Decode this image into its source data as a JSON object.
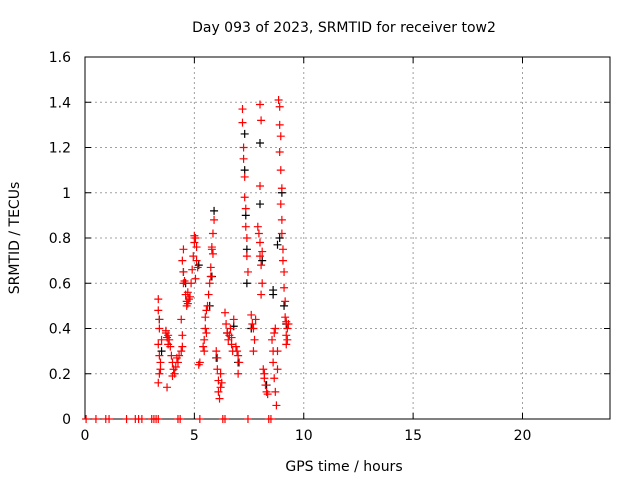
{
  "chart_data": {
    "type": "scatter",
    "title": "Day 093 of 2023, SRMTID for receiver tow2",
    "xlabel": "GPS time / hours",
    "ylabel": "SRMTID / TECUs",
    "xlim": [
      0,
      24
    ],
    "ylim": [
      0,
      1.6
    ],
    "xticks": [
      0,
      5,
      10,
      15,
      20
    ],
    "xtick_labels": [
      "0",
      "5",
      "10",
      "15",
      "20"
    ],
    "yticks": [
      0,
      0.2,
      0.4,
      0.6,
      0.8,
      1,
      1.2,
      1.4,
      1.6
    ],
    "ytick_labels": [
      "0",
      "0.2",
      "0.4",
      "0.6",
      "0.8",
      "1",
      "1.2",
      "1.4",
      "1.6"
    ],
    "grid": true,
    "marker": "plus",
    "series": [
      {
        "name": "series-black",
        "color": "#000000",
        "points": [
          [
            3.4,
            0.44
          ],
          [
            3.5,
            0.3
          ],
          [
            4.5,
            0.65
          ],
          [
            4.6,
            0.6
          ],
          [
            5.2,
            0.68
          ],
          [
            5.7,
            0.5
          ],
          [
            5.8,
            0.63
          ],
          [
            5.9,
            0.92
          ],
          [
            6.0,
            0.27
          ],
          [
            6.5,
            0.38
          ],
          [
            7.0,
            0.25
          ],
          [
            7.3,
            1.26
          ],
          [
            7.3,
            1.1
          ],
          [
            7.35,
            0.9
          ],
          [
            7.4,
            0.75
          ],
          [
            7.4,
            0.6
          ],
          [
            7.6,
            0.4
          ],
          [
            8.0,
            1.22
          ],
          [
            8.0,
            0.95
          ],
          [
            8.1,
            0.7
          ],
          [
            8.6,
            0.55
          ],
          [
            8.6,
            0.57
          ],
          [
            8.8,
            0.77
          ],
          [
            8.9,
            0.8
          ],
          [
            9.0,
            1.0
          ],
          [
            9.1,
            0.5
          ],
          [
            9.2,
            0.42
          ],
          [
            8.3,
            0.15
          ],
          [
            6.8,
            0.41
          ]
        ]
      },
      {
        "name": "series-red",
        "color": "#ff0000",
        "points": [
          [
            0.05,
            0
          ],
          [
            0.5,
            0
          ],
          [
            0.95,
            0
          ],
          [
            1.1,
            0
          ],
          [
            1.9,
            0
          ],
          [
            2.3,
            0
          ],
          [
            2.45,
            0
          ],
          [
            2.6,
            0
          ],
          [
            3.05,
            0
          ],
          [
            3.15,
            0
          ],
          [
            3.25,
            0
          ],
          [
            3.35,
            0
          ],
          [
            4.25,
            0
          ],
          [
            4.35,
            0
          ],
          [
            5.25,
            0
          ],
          [
            6.3,
            0
          ],
          [
            6.4,
            0
          ],
          [
            7.45,
            0
          ],
          [
            8.4,
            0
          ],
          [
            8.5,
            0
          ],
          [
            3.35,
            0.53
          ],
          [
            3.35,
            0.48
          ],
          [
            3.4,
            0.44
          ],
          [
            3.4,
            0.4
          ],
          [
            3.35,
            0.33
          ],
          [
            3.4,
            0.28
          ],
          [
            3.45,
            0.25
          ],
          [
            3.4,
            0.2
          ],
          [
            3.35,
            0.16
          ],
          [
            3.45,
            0.22
          ],
          [
            3.5,
            0.35
          ],
          [
            3.7,
            0.38
          ],
          [
            3.75,
            0.36
          ],
          [
            3.8,
            0.37
          ],
          [
            3.85,
            0.35
          ],
          [
            3.8,
            0.33
          ],
          [
            3.9,
            0.32
          ],
          [
            3.75,
            0.14
          ],
          [
            3.7,
            0.39
          ],
          [
            3.95,
            0.28
          ],
          [
            4.0,
            0.25
          ],
          [
            4.05,
            0.22
          ],
          [
            4.1,
            0.2
          ],
          [
            4.0,
            0.19
          ],
          [
            4.15,
            0.23
          ],
          [
            4.2,
            0.27
          ],
          [
            4.25,
            0.25
          ],
          [
            4.3,
            0.28
          ],
          [
            4.4,
            0.3
          ],
          [
            4.45,
            0.32
          ],
          [
            4.45,
            0.37
          ],
          [
            4.4,
            0.44
          ],
          [
            4.5,
            0.6
          ],
          [
            4.5,
            0.65
          ],
          [
            4.45,
            0.7
          ],
          [
            4.5,
            0.75
          ],
          [
            4.55,
            0.61
          ],
          [
            4.6,
            0.55
          ],
          [
            4.65,
            0.52
          ],
          [
            4.7,
            0.51
          ],
          [
            4.75,
            0.53
          ],
          [
            4.8,
            0.54
          ],
          [
            4.7,
            0.56
          ],
          [
            4.65,
            0.5
          ],
          [
            4.85,
            0.6
          ],
          [
            4.9,
            0.66
          ],
          [
            4.95,
            0.72
          ],
          [
            5.0,
            0.78
          ],
          [
            5.0,
            0.81
          ],
          [
            5.05,
            0.8
          ],
          [
            5.1,
            0.76
          ],
          [
            5.1,
            0.7
          ],
          [
            5.15,
            0.67
          ],
          [
            5.05,
            0.62
          ],
          [
            5.2,
            0.24
          ],
          [
            5.25,
            0.25
          ],
          [
            5.4,
            0.32
          ],
          [
            5.45,
            0.35
          ],
          [
            5.5,
            0.4
          ],
          [
            5.5,
            0.45
          ],
          [
            5.55,
            0.48
          ],
          [
            5.6,
            0.5
          ],
          [
            5.55,
            0.38
          ],
          [
            5.45,
            0.3
          ],
          [
            5.65,
            0.55
          ],
          [
            5.7,
            0.6
          ],
          [
            5.75,
            0.67
          ],
          [
            5.8,
            0.75
          ],
          [
            5.8,
            0.76
          ],
          [
            5.85,
            0.82
          ],
          [
            5.9,
            0.88
          ],
          [
            5.85,
            0.73
          ],
          [
            5.75,
            0.63
          ],
          [
            6.0,
            0.3
          ],
          [
            6.05,
            0.22
          ],
          [
            6.1,
            0.17
          ],
          [
            6.1,
            0.12
          ],
          [
            6.15,
            0.09
          ],
          [
            6.2,
            0.14
          ],
          [
            6.25,
            0.16
          ],
          [
            6.05,
            0.27
          ],
          [
            6.2,
            0.2
          ],
          [
            6.4,
            0.47
          ],
          [
            6.45,
            0.42
          ],
          [
            6.5,
            0.38
          ],
          [
            6.55,
            0.35
          ],
          [
            6.6,
            0.37
          ],
          [
            6.65,
            0.4
          ],
          [
            6.7,
            0.33
          ],
          [
            6.75,
            0.3
          ],
          [
            6.8,
            0.44
          ],
          [
            6.7,
            0.36
          ],
          [
            6.9,
            0.32
          ],
          [
            6.95,
            0.3
          ],
          [
            7.0,
            0.28
          ],
          [
            7.0,
            0.2
          ],
          [
            7.05,
            0.25
          ],
          [
            7.2,
            1.37
          ],
          [
            7.2,
            1.31
          ],
          [
            7.25,
            1.2
          ],
          [
            7.25,
            1.15
          ],
          [
            7.3,
            1.07
          ],
          [
            7.3,
            0.98
          ],
          [
            7.35,
            0.93
          ],
          [
            7.35,
            0.85
          ],
          [
            7.4,
            0.8
          ],
          [
            7.4,
            0.72
          ],
          [
            7.45,
            0.65
          ],
          [
            7.6,
            0.46
          ],
          [
            7.65,
            0.42
          ],
          [
            7.7,
            0.4
          ],
          [
            7.75,
            0.35
          ],
          [
            7.7,
            0.3
          ],
          [
            7.8,
            0.44
          ],
          [
            7.9,
            0.85
          ],
          [
            7.95,
            0.82
          ],
          [
            8.0,
            0.78
          ],
          [
            8.0,
            0.72
          ],
          [
            8.05,
            0.68
          ],
          [
            8.1,
            0.6
          ],
          [
            8.05,
            0.55
          ],
          [
            8.0,
            1.39
          ],
          [
            8.05,
            1.32
          ],
          [
            8.0,
            1.03
          ],
          [
            8.1,
            0.74
          ],
          [
            8.15,
            0.22
          ],
          [
            8.2,
            0.18
          ],
          [
            8.25,
            0.15
          ],
          [
            8.3,
            0.12
          ],
          [
            8.35,
            0.11
          ],
          [
            8.2,
            0.2
          ],
          [
            8.55,
            0.35
          ],
          [
            8.6,
            0.3
          ],
          [
            8.6,
            0.25
          ],
          [
            8.65,
            0.18
          ],
          [
            8.7,
            0.12
          ],
          [
            8.75,
            0.06
          ],
          [
            8.7,
            0.4
          ],
          [
            8.65,
            0.38
          ],
          [
            8.8,
            0.3
          ],
          [
            8.8,
            0.22
          ],
          [
            8.85,
            1.41
          ],
          [
            8.9,
            1.38
          ],
          [
            8.9,
            1.3
          ],
          [
            8.95,
            1.25
          ],
          [
            8.9,
            1.18
          ],
          [
            8.95,
            1.1
          ],
          [
            9.0,
            1.02
          ],
          [
            8.95,
            0.95
          ],
          [
            9.0,
            0.88
          ],
          [
            9.0,
            0.82
          ],
          [
            9.05,
            0.75
          ],
          [
            9.05,
            0.7
          ],
          [
            9.1,
            0.65
          ],
          [
            9.1,
            0.58
          ],
          [
            9.15,
            0.52
          ],
          [
            9.15,
            0.45
          ],
          [
            9.2,
            0.43
          ],
          [
            9.25,
            0.4
          ],
          [
            9.2,
            0.37
          ],
          [
            9.25,
            0.35
          ],
          [
            9.3,
            0.42
          ],
          [
            9.2,
            0.33
          ]
        ]
      }
    ]
  }
}
